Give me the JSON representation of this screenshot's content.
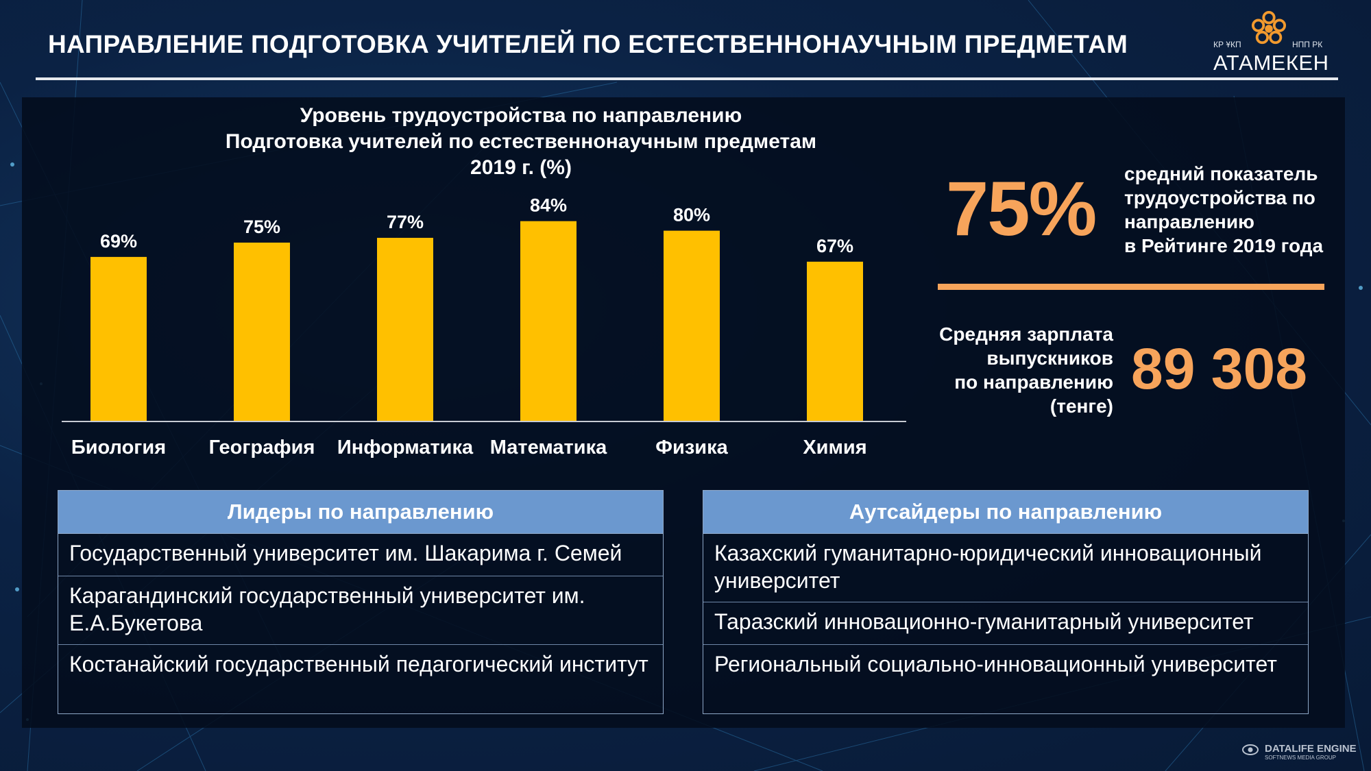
{
  "header": {
    "title": "НАПРАВЛЕНИЕ ПОДГОТОВКА УЧИТЕЛЕЙ ПО ЕСТЕСТВЕННОНАУЧНЫМ ПРЕДМЕТАМ",
    "logo_left": "КР ҰКП",
    "logo_right": "НПП РК",
    "logo_name": "АТАМЕКЕН"
  },
  "chart_data": {
    "type": "bar",
    "title_lines": [
      "Уровень трудоустройства по направлению",
      "Подготовка учителей по естественнонаучным предметам",
      "2019 г. (%)"
    ],
    "categories": [
      "Биология",
      "География",
      "Информатика",
      "Математика",
      "Физика",
      "Химия"
    ],
    "values": [
      69,
      75,
      77,
      84,
      80,
      67
    ],
    "value_labels": [
      "69%",
      "75%",
      "77%",
      "84%",
      "80%",
      "67%"
    ],
    "bar_color": "#ffc000",
    "ylim": [
      0,
      100
    ],
    "grid": false,
    "xlabel": "",
    "ylabel": ""
  },
  "stats": {
    "employment_value": "75%",
    "employment_desc": [
      "средний показатель",
      "трудоустройства по",
      "направлению",
      "в Рейтинге 2019 года"
    ],
    "salary_label": [
      "Средняя зарплата",
      "выпускников",
      "по направлению",
      "(тенге)"
    ],
    "salary_value": "89 308",
    "accent_color": "#f7a45b"
  },
  "leaders": {
    "header": "Лидеры по направлению",
    "rows": [
      "Государственный университет им. Шакарима г. Семей",
      "Карагандинский государственный университет им. Е.А.Букетова",
      "Костанайский государственный педагогический институт"
    ]
  },
  "outsiders": {
    "header": "Аутсайдеры по направлению",
    "rows": [
      "Казахский гуманитарно-юридический инновационный университет",
      "Таразский инновационно-гуманитарный университет",
      "Региональный социально-инновационный университет"
    ]
  },
  "watermark": {
    "name": "DATALIFE ENGINE",
    "sub": "SOFTNEWS MEDIA GROUP"
  }
}
